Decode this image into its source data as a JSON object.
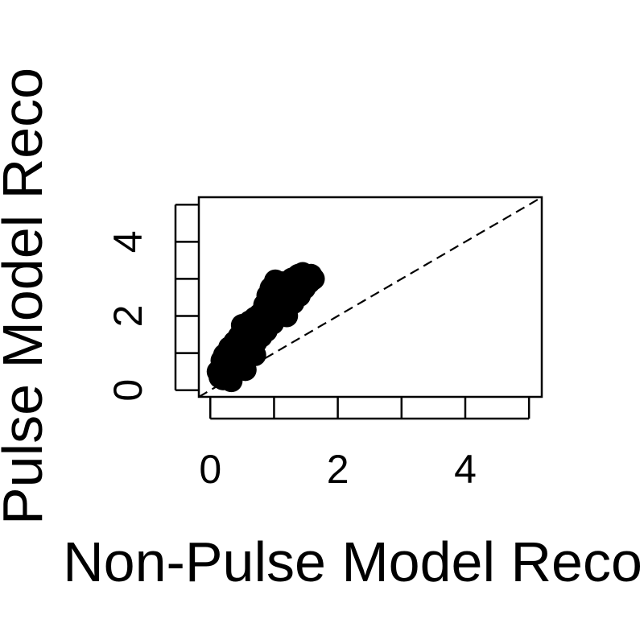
{
  "chart_data": {
    "type": "scatter",
    "title": "",
    "xlabel": "Non-Pulse Model Reco",
    "ylabel": "Pulse Model Reco",
    "xlim": [
      -0.18,
      5.2
    ],
    "ylim": [
      -0.18,
      5.2
    ],
    "x_ticks": [
      0,
      1,
      2,
      3,
      4,
      5
    ],
    "x_tick_labels": [
      "0",
      "",
      "2",
      "",
      "4",
      ""
    ],
    "y_ticks": [
      0,
      1,
      2,
      3,
      4,
      5
    ],
    "y_tick_labels": [
      "0",
      "",
      "2",
      "",
      "4",
      ""
    ],
    "reference_line": {
      "from": [
        -0.18,
        -0.18
      ],
      "to": [
        5.2,
        5.2
      ],
      "style": "dashed"
    },
    "marker_color": "#000000",
    "series": [
      {
        "points": [
          [
            0.12,
            0.5
          ],
          [
            0.15,
            0.35
          ],
          [
            0.18,
            0.8
          ],
          [
            0.2,
            0.3
          ],
          [
            0.22,
            0.95
          ],
          [
            0.25,
            0.5
          ],
          [
            0.27,
            0.65
          ],
          [
            0.3,
            1.15
          ],
          [
            0.32,
            0.45
          ],
          [
            0.35,
            0.9
          ],
          [
            0.38,
            1.3
          ],
          [
            0.4,
            0.6
          ],
          [
            0.42,
            1.0
          ],
          [
            0.45,
            1.45
          ],
          [
            0.48,
            0.75
          ],
          [
            0.5,
            1.2
          ],
          [
            0.5,
            1.75
          ],
          [
            0.55,
            1.6
          ],
          [
            0.58,
            0.95
          ],
          [
            0.6,
            1.35
          ],
          [
            0.62,
            1.85
          ],
          [
            0.65,
            1.15
          ],
          [
            0.68,
            1.55
          ],
          [
            0.7,
            1.95
          ],
          [
            0.72,
            1.3
          ],
          [
            0.75,
            1.7
          ],
          [
            0.78,
            2.05
          ],
          [
            0.8,
            1.45
          ],
          [
            0.82,
            1.85
          ],
          [
            0.85,
            2.3
          ],
          [
            0.88,
            1.6
          ],
          [
            0.9,
            2.55
          ],
          [
            0.92,
            2.1
          ],
          [
            0.95,
            2.75
          ],
          [
            0.98,
            1.8
          ],
          [
            1.0,
            2.4
          ],
          [
            1.02,
            2.95
          ],
          [
            1.05,
            2.05
          ],
          [
            1.08,
            2.65
          ],
          [
            1.1,
            2.25
          ],
          [
            1.12,
            2.9
          ],
          [
            1.15,
            2.45
          ],
          [
            1.18,
            2.2
          ],
          [
            1.2,
            2.8
          ],
          [
            1.25,
            2.6
          ],
          [
            1.28,
            3.0
          ],
          [
            1.3,
            2.35
          ],
          [
            1.35,
            2.85
          ],
          [
            1.38,
            3.1
          ],
          [
            1.4,
            2.55
          ],
          [
            1.45,
            3.15
          ],
          [
            1.48,
            2.75
          ],
          [
            1.5,
            3.05
          ],
          [
            1.55,
            2.9
          ],
          [
            1.58,
            3.1
          ],
          [
            1.62,
            3.0
          ],
          [
            0.33,
            0.25
          ],
          [
            0.55,
            0.55
          ],
          [
            0.7,
            0.95
          ],
          [
            1.2,
            2.0
          ]
        ]
      }
    ]
  }
}
